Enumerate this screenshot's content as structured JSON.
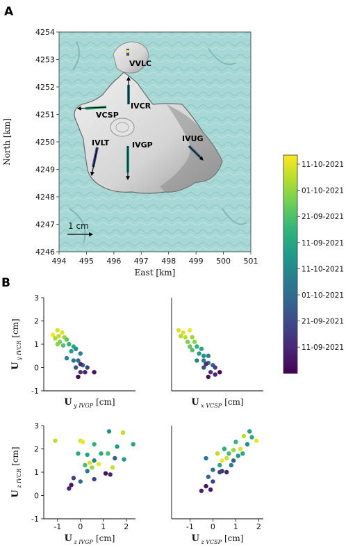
{
  "panels": {
    "a": "A",
    "b": "B"
  },
  "map": {
    "xlabel": "East [km]",
    "ylabel": "North [km]",
    "xticks": [
      494,
      495,
      496,
      497,
      498,
      499,
      500,
      501
    ],
    "yticks": [
      4246,
      4247,
      4248,
      4249,
      4250,
      4251,
      4252,
      4253,
      4254
    ],
    "scale_label": "1 cm",
    "stations": [
      {
        "name": "VVLC",
        "x": 496.6,
        "y": 4253.1
      },
      {
        "name": "IVCR",
        "x": 496.6,
        "y": 4251.3
      },
      {
        "name": "VCSP",
        "x": 495.3,
        "y": 4251.2
      },
      {
        "name": "IVLT",
        "x": 495.3,
        "y": 4249.8
      },
      {
        "name": "IVGP",
        "x": 496.6,
        "y": 4249.8
      },
      {
        "name": "IVUG",
        "x": 498.8,
        "y": 4249.9
      }
    ]
  },
  "colorbar": {
    "labels": [
      "11-10-2021",
      "01-10-2021",
      "21-09-2021",
      "11-09-2021",
      "11-10-2021",
      "01-10-2021",
      "21-09-2021",
      "11-09-2021"
    ],
    "colors": [
      "#fde725",
      "#b5de2b",
      "#6ece58",
      "#35b779",
      "#1f9e89",
      "#26828e",
      "#31688e",
      "#3e4989",
      "#482878",
      "#440154"
    ]
  },
  "chart_data": [
    {
      "type": "scatter",
      "xlabel_main": "U",
      "xlabel_sub": "y IVGP",
      "xlabel_unit": "[cm]",
      "ylabel_main": "U",
      "ylabel_sub": "y IVCR",
      "ylabel_unit": "[cm]",
      "xlim": [
        -1.6,
        2.4
      ],
      "ylim": [
        -1,
        3
      ],
      "xticks": [],
      "yticks": [
        -1,
        0,
        1,
        2,
        3
      ],
      "points": [
        [
          -1.0,
          1.6,
          0.95
        ],
        [
          -0.8,
          1.5,
          0.95
        ],
        [
          -0.95,
          1.35,
          0.9
        ],
        [
          -1.2,
          1.4,
          0.98
        ],
        [
          -0.7,
          1.3,
          0.85
        ],
        [
          -0.9,
          1.1,
          0.8
        ],
        [
          -1.0,
          1.0,
          0.82
        ],
        [
          -0.6,
          1.2,
          0.75
        ],
        [
          -0.5,
          1.0,
          0.65
        ],
        [
          -0.3,
          0.9,
          0.6
        ],
        [
          -0.4,
          0.7,
          0.55
        ],
        [
          -0.2,
          0.8,
          0.5
        ],
        [
          -0.6,
          0.4,
          0.45
        ],
        [
          -0.3,
          0.3,
          0.4
        ],
        [
          0.0,
          0.6,
          0.45
        ],
        [
          -0.1,
          0.3,
          0.35
        ],
        [
          0.1,
          0.1,
          0.3
        ],
        [
          -0.2,
          0.0,
          0.25
        ],
        [
          0.3,
          0.0,
          0.2
        ],
        [
          0.0,
          -0.2,
          0.15
        ],
        [
          0.2,
          -0.2,
          0.1
        ],
        [
          0.6,
          -0.2,
          0.05
        ],
        [
          -0.1,
          -0.4,
          0.03
        ],
        [
          0.0,
          0.15,
          0.12
        ],
        [
          -1.1,
          1.25,
          0.88
        ],
        [
          -0.75,
          0.95,
          0.72
        ]
      ]
    },
    {
      "type": "scatter",
      "xlabel_main": "U",
      "xlabel_sub": "x VCSP",
      "xlabel_unit": "[cm]",
      "ylabel_main": "",
      "ylabel_sub": "",
      "ylabel_unit": "",
      "xlim": [
        -1.8,
        2.2
      ],
      "ylim": [
        -1,
        3
      ],
      "xticks": [],
      "yticks": [],
      "points": [
        [
          -1.5,
          1.6,
          0.95
        ],
        [
          -1.3,
          1.5,
          0.95
        ],
        [
          -1.0,
          1.6,
          0.98
        ],
        [
          -1.2,
          1.3,
          0.9
        ],
        [
          -0.9,
          1.3,
          0.85
        ],
        [
          -1.1,
          1.1,
          0.8
        ],
        [
          -0.8,
          1.1,
          0.82
        ],
        [
          -1.0,
          0.9,
          0.75
        ],
        [
          -0.7,
          0.9,
          0.65
        ],
        [
          -0.5,
          0.8,
          0.6
        ],
        [
          -0.6,
          0.6,
          0.55
        ],
        [
          -0.4,
          0.5,
          0.5
        ],
        [
          -0.7,
          0.3,
          0.45
        ],
        [
          -0.4,
          0.3,
          0.4
        ],
        [
          -0.2,
          0.5,
          0.45
        ],
        [
          -0.2,
          0.2,
          0.35
        ],
        [
          0.0,
          0.1,
          0.3
        ],
        [
          -0.4,
          0.0,
          0.25
        ],
        [
          0.1,
          0.0,
          0.2
        ],
        [
          -0.1,
          -0.2,
          0.15
        ],
        [
          0.1,
          -0.3,
          0.1
        ],
        [
          -0.2,
          -0.4,
          0.05
        ],
        [
          0.3,
          -0.2,
          0.03
        ],
        [
          -0.3,
          0.15,
          0.12
        ],
        [
          -1.4,
          1.35,
          0.88
        ],
        [
          -0.9,
          0.75,
          0.72
        ]
      ]
    },
    {
      "type": "scatter",
      "xlabel_main": "U",
      "xlabel_sub": "z IVGP",
      "xlabel_unit": "[cm]",
      "ylabel_main": "U",
      "ylabel_sub": "z IVCR",
      "ylabel_unit": "[cm]",
      "xlim": [
        -1.6,
        2.4
      ],
      "ylim": [
        -1,
        3
      ],
      "xticks": [
        -1,
        0,
        1,
        2
      ],
      "yticks": [
        -1,
        0,
        1,
        2,
        3
      ],
      "points": [
        [
          -1.1,
          2.35,
          0.9
        ],
        [
          0.0,
          2.35,
          0.95
        ],
        [
          0.1,
          2.3,
          0.97
        ],
        [
          1.25,
          2.75,
          0.5
        ],
        [
          1.85,
          2.7,
          0.9
        ],
        [
          2.3,
          2.2,
          0.6
        ],
        [
          0.6,
          2.2,
          0.65
        ],
        [
          1.6,
          2.1,
          0.55
        ],
        [
          -0.1,
          1.8,
          0.62
        ],
        [
          0.3,
          1.75,
          0.58
        ],
        [
          0.9,
          1.8,
          0.6
        ],
        [
          1.2,
          1.8,
          0.7
        ],
        [
          1.9,
          1.55,
          0.55
        ],
        [
          0.6,
          1.5,
          0.45
        ],
        [
          0.5,
          1.2,
          0.85
        ],
        [
          0.4,
          1.4,
          0.95
        ],
        [
          1.4,
          1.2,
          0.92
        ],
        [
          0.2,
          1.3,
          0.7
        ],
        [
          0.3,
          1.05,
          0.4
        ],
        [
          -0.3,
          0.75,
          0.2
        ],
        [
          0.0,
          0.6,
          0.35
        ],
        [
          0.6,
          0.7,
          0.2
        ],
        [
          -0.4,
          0.45,
          0.05
        ],
        [
          -0.5,
          0.3,
          0.1
        ],
        [
          1.1,
          0.95,
          0.05
        ],
        [
          1.3,
          0.9,
          0.1
        ],
        [
          1.5,
          1.6,
          0.3
        ],
        [
          0.8,
          1.35,
          0.98
        ]
      ]
    },
    {
      "type": "scatter",
      "xlabel_main": "U",
      "xlabel_sub": "z VCSP",
      "xlabel_unit": "[cm]",
      "ylabel_main": "",
      "ylabel_sub": "",
      "ylabel_unit": "",
      "xlim": [
        -1.8,
        2.2
      ],
      "ylim": [
        -1,
        3
      ],
      "xticks": [
        -1,
        0,
        1,
        2
      ],
      "yticks": [],
      "points": [
        [
          1.9,
          2.35,
          0.97
        ],
        [
          1.6,
          2.75,
          0.55
        ],
        [
          1.35,
          2.55,
          0.9
        ],
        [
          1.7,
          2.5,
          0.6
        ],
        [
          1.0,
          2.3,
          0.65
        ],
        [
          1.5,
          2.2,
          0.5
        ],
        [
          1.2,
          2.0,
          0.95
        ],
        [
          0.9,
          1.95,
          0.85
        ],
        [
          0.5,
          2.0,
          0.62
        ],
        [
          0.7,
          1.8,
          0.7
        ],
        [
          1.3,
          1.8,
          0.6
        ],
        [
          1.1,
          1.7,
          0.55
        ],
        [
          0.2,
          1.8,
          0.9
        ],
        [
          0.4,
          1.5,
          0.98
        ],
        [
          0.6,
          1.6,
          0.92
        ],
        [
          0.3,
          1.3,
          0.6
        ],
        [
          0.8,
          1.3,
          0.45
        ],
        [
          -0.3,
          1.6,
          0.4
        ],
        [
          0.0,
          1.1,
          0.35
        ],
        [
          0.3,
          1.0,
          0.2
        ],
        [
          -0.2,
          0.8,
          0.35
        ],
        [
          0.6,
          1.0,
          0.1
        ],
        [
          0.0,
          0.6,
          0.2
        ],
        [
          -0.3,
          0.4,
          0.05
        ],
        [
          -0.5,
          0.2,
          0.1
        ],
        [
          -0.1,
          0.25,
          0.08
        ],
        [
          0.9,
          1.5,
          0.3
        ],
        [
          0.4,
          1.05,
          0.15
        ]
      ]
    }
  ]
}
